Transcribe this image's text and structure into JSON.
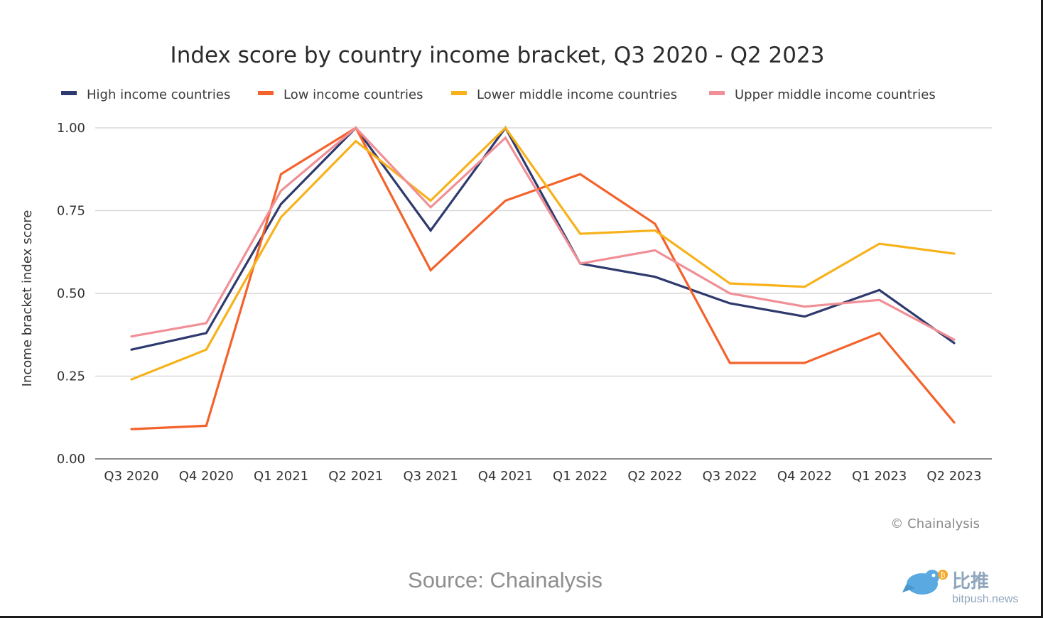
{
  "chart_data": {
    "type": "line",
    "title": "Index score by country income bracket, Q3 2020 - Q2 2023",
    "ylabel": "Income bracket index score",
    "xlabel": "",
    "ylim": [
      0,
      1
    ],
    "yticks": [
      "0.00",
      "0.25",
      "0.50",
      "0.75",
      "1.00"
    ],
    "ytick_values": [
      0,
      0.25,
      0.5,
      0.75,
      1.0
    ],
    "grid": "horizontal",
    "legend_position": "top",
    "categories": [
      "Q3 2020",
      "Q4 2020",
      "Q1 2021",
      "Q2 2021",
      "Q3 2021",
      "Q4 2021",
      "Q1 2022",
      "Q2 2022",
      "Q3 2022",
      "Q4 2022",
      "Q1 2023",
      "Q2 2023"
    ],
    "series": [
      {
        "name": "High income countries",
        "color": "#2e3a6e",
        "values": [
          0.33,
          0.38,
          0.77,
          1.0,
          0.69,
          1.0,
          0.59,
          0.55,
          0.47,
          0.43,
          0.51,
          0.35
        ]
      },
      {
        "name": "Low income countries",
        "color": "#f4622b",
        "values": [
          0.09,
          0.1,
          0.86,
          1.0,
          0.57,
          0.78,
          0.86,
          0.71,
          0.29,
          0.29,
          0.38,
          0.11
        ]
      },
      {
        "name": "Lower middle income countries",
        "color": "#f7b21b",
        "values": [
          0.24,
          0.33,
          0.73,
          0.96,
          0.78,
          1.0,
          0.68,
          0.69,
          0.53,
          0.52,
          0.65,
          0.62
        ]
      },
      {
        "name": "Upper middle income countries",
        "color": "#f08f96",
        "values": [
          0.37,
          0.41,
          0.81,
          1.0,
          0.76,
          0.97,
          0.59,
          0.63,
          0.5,
          0.46,
          0.48,
          0.36
        ]
      }
    ]
  },
  "credit": "© Chainalysis",
  "source": "Source: Chainalysis",
  "watermark": {
    "cn": "比推",
    "en": "bitpush.news",
    "icon": "bird-logo-icon"
  }
}
